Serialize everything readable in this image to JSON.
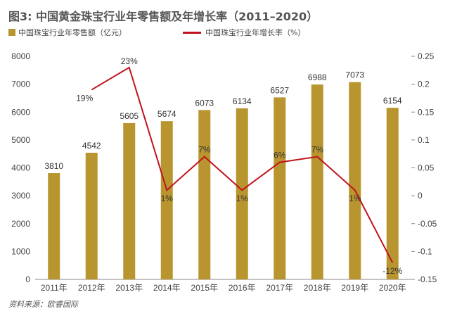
{
  "chart_data": {
    "type": "bar+line",
    "title": "图3: 中国黄金珠宝行业年零售额及年增长率（2011–2020）",
    "categories": [
      "2011年",
      "2012年",
      "2013年",
      "2014年",
      "2015年",
      "2016年",
      "2017年",
      "2018年",
      "2019年",
      "2020年"
    ],
    "series": [
      {
        "name": "中国珠宝行业年零售额（亿元）",
        "type": "bar",
        "axis": "left",
        "color": "#b8952f",
        "values": [
          3810,
          4542,
          5605,
          5674,
          6073,
          6134,
          6527,
          6988,
          7073,
          6154
        ],
        "labels": [
          "3810",
          "4542",
          "5605",
          "5674",
          "6073",
          "6134",
          "6527",
          "6988",
          "7073",
          "6154"
        ]
      },
      {
        "name": "中国珠宝行业年增长率（%）",
        "type": "line",
        "axis": "right",
        "color": "#c0141c",
        "values": [
          null,
          0.19,
          0.23,
          0.01,
          0.07,
          0.01,
          0.06,
          0.07,
          0.01,
          -0.12
        ],
        "labels": [
          "",
          "19%",
          "23%",
          "1%",
          "7%",
          "1%",
          "6%",
          "7%",
          "1%",
          "-12%"
        ]
      }
    ],
    "left_axis": {
      "ylim": [
        0,
        8000
      ],
      "ticks": [
        0,
        1000,
        2000,
        3000,
        4000,
        5000,
        6000,
        7000,
        8000
      ]
    },
    "right_axis": {
      "ylim": [
        -0.15,
        0.25
      ],
      "ticks": [
        "-0.15",
        "-0.1",
        "-0.05",
        "0",
        "0.05",
        "0.1",
        "0.15",
        "0.2",
        "0.25"
      ]
    },
    "grid": false,
    "legend": "top-left"
  },
  "source": "资料来源：欧睿国际"
}
